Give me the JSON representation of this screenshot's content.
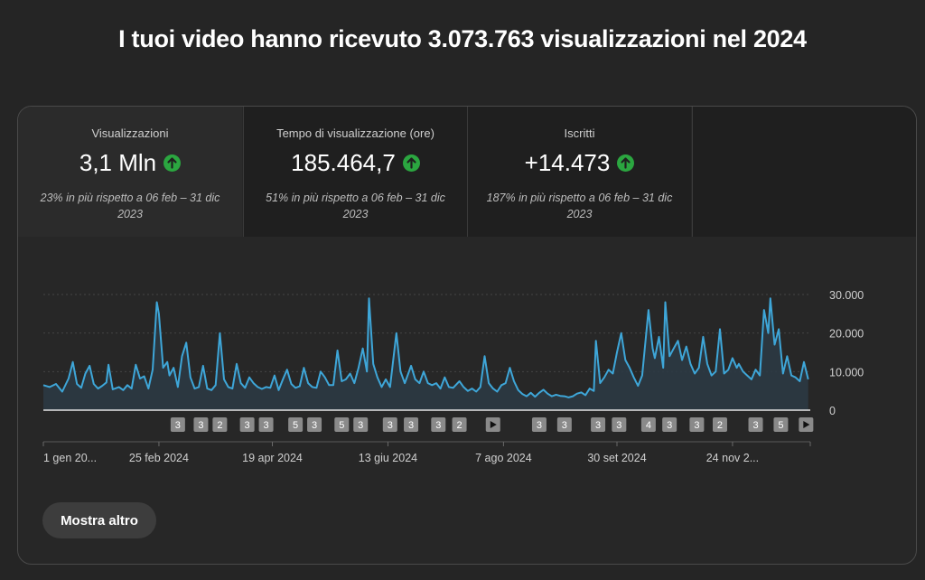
{
  "headline": "I tuoi video hanno ricevuto 3.073.763 visualizzazioni nel 2024",
  "metrics": [
    {
      "label": "Visualizzazioni",
      "value": "3,1 Mln",
      "note": "23% in più rispetto a 06 feb – 31 dic 2023"
    },
    {
      "label": "Tempo di visualizzazione (ore)",
      "value": "185.464,7",
      "note": "51% in più rispetto a 06 feb – 31 dic 2023"
    },
    {
      "label": "Iscritti",
      "value": "+14.473",
      "note": "187% in più rispetto a 06 feb – 31 dic 2023"
    }
  ],
  "colors": {
    "line": "#3ea6d8",
    "area": "#2c3a44",
    "up": "#2ba640",
    "marker": "#8a8a8a"
  },
  "more_button": "Mostra altro",
  "chart_data": {
    "type": "area",
    "title": "",
    "xlabel": "",
    "ylabel": "",
    "ylim": [
      0,
      30000
    ],
    "yticks": [
      {
        "value": 30000,
        "label": "30.000"
      },
      {
        "value": 20000,
        "label": "20.000"
      },
      {
        "value": 10000,
        "label": "10.000"
      },
      {
        "value": 0,
        "label": "0"
      }
    ],
    "xrange_days": [
      0,
      365
    ],
    "xticks": [
      {
        "day": 0,
        "label": "1 gen 20..."
      },
      {
        "day": 55,
        "label": "25 feb 2024"
      },
      {
        "day": 109,
        "label": "19 apr 2024"
      },
      {
        "day": 164,
        "label": "13 giu 2024"
      },
      {
        "day": 219,
        "label": "7 ago 2024"
      },
      {
        "day": 273,
        "label": "30 set 2024"
      },
      {
        "day": 328,
        "label": "24 nov 2..."
      }
    ],
    "series": [
      {
        "name": "",
        "points": [
          [
            0,
            6500
          ],
          [
            3,
            6000
          ],
          [
            6,
            6800
          ],
          [
            9,
            4800
          ],
          [
            12,
            8200
          ],
          [
            14,
            12500
          ],
          [
            16,
            6800
          ],
          [
            18,
            5800
          ],
          [
            20,
            9500
          ],
          [
            22,
            11500
          ],
          [
            24,
            6800
          ],
          [
            26,
            5600
          ],
          [
            28,
            6300
          ],
          [
            30,
            7200
          ],
          [
            31,
            11800
          ],
          [
            33,
            5400
          ],
          [
            36,
            6000
          ],
          [
            38,
            5200
          ],
          [
            40,
            6500
          ],
          [
            42,
            5600
          ],
          [
            44,
            11800
          ],
          [
            46,
            8200
          ],
          [
            48,
            8800
          ],
          [
            50,
            5600
          ],
          [
            52,
            10500
          ],
          [
            54,
            28000
          ],
          [
            55,
            25000
          ],
          [
            57,
            11000
          ],
          [
            59,
            12500
          ],
          [
            60,
            9000
          ],
          [
            62,
            11000
          ],
          [
            64,
            6000
          ],
          [
            66,
            14000
          ],
          [
            68,
            17500
          ],
          [
            70,
            8500
          ],
          [
            72,
            5600
          ],
          [
            74,
            6000
          ],
          [
            76,
            11500
          ],
          [
            78,
            5600
          ],
          [
            80,
            5200
          ],
          [
            82,
            6500
          ],
          [
            84,
            20000
          ],
          [
            86,
            8000
          ],
          [
            88,
            6000
          ],
          [
            90,
            5600
          ],
          [
            92,
            12000
          ],
          [
            94,
            7000
          ],
          [
            96,
            5800
          ],
          [
            98,
            8500
          ],
          [
            100,
            7000
          ],
          [
            102,
            6000
          ],
          [
            104,
            5500
          ],
          [
            106,
            6000
          ],
          [
            108,
            5800
          ],
          [
            110,
            9000
          ],
          [
            112,
            5200
          ],
          [
            114,
            8000
          ],
          [
            116,
            10500
          ],
          [
            118,
            6800
          ],
          [
            120,
            5800
          ],
          [
            122,
            6200
          ],
          [
            124,
            11000
          ],
          [
            126,
            7000
          ],
          [
            128,
            6000
          ],
          [
            130,
            5800
          ],
          [
            132,
            10000
          ],
          [
            134,
            8500
          ],
          [
            136,
            6500
          ],
          [
            138,
            6500
          ],
          [
            140,
            15500
          ],
          [
            142,
            7500
          ],
          [
            144,
            8000
          ],
          [
            146,
            9500
          ],
          [
            148,
            7000
          ],
          [
            150,
            11000
          ],
          [
            152,
            16000
          ],
          [
            154,
            10000
          ],
          [
            155,
            29000
          ],
          [
            157,
            12000
          ],
          [
            159,
            8500
          ],
          [
            161,
            6000
          ],
          [
            163,
            8000
          ],
          [
            165,
            6000
          ],
          [
            168,
            20000
          ],
          [
            170,
            10000
          ],
          [
            172,
            7000
          ],
          [
            175,
            11500
          ],
          [
            177,
            8000
          ],
          [
            179,
            7000
          ],
          [
            181,
            10000
          ],
          [
            183,
            7000
          ],
          [
            185,
            6500
          ],
          [
            187,
            7000
          ],
          [
            189,
            5600
          ],
          [
            191,
            8500
          ],
          [
            193,
            6000
          ],
          [
            195,
            5800
          ],
          [
            198,
            7500
          ],
          [
            200,
            6000
          ],
          [
            202,
            5000
          ],
          [
            204,
            5600
          ],
          [
            206,
            4800
          ],
          [
            208,
            6000
          ],
          [
            210,
            14000
          ],
          [
            212,
            7000
          ],
          [
            214,
            5600
          ],
          [
            216,
            4800
          ],
          [
            218,
            6500
          ],
          [
            220,
            7000
          ],
          [
            222,
            11000
          ],
          [
            224,
            7500
          ],
          [
            226,
            5200
          ],
          [
            228,
            4200
          ],
          [
            230,
            3600
          ],
          [
            232,
            4500
          ],
          [
            234,
            3500
          ],
          [
            236,
            4500
          ],
          [
            238,
            5300
          ],
          [
            240,
            4300
          ],
          [
            242,
            3600
          ],
          [
            244,
            4000
          ],
          [
            246,
            3700
          ],
          [
            248,
            3600
          ],
          [
            250,
            3300
          ],
          [
            252,
            3600
          ],
          [
            254,
            4300
          ],
          [
            256,
            4600
          ],
          [
            258,
            3900
          ],
          [
            260,
            5600
          ],
          [
            262,
            5000
          ],
          [
            263,
            18000
          ],
          [
            265,
            7000
          ],
          [
            267,
            8500
          ],
          [
            269,
            10500
          ],
          [
            271,
            9500
          ],
          [
            273,
            15000
          ],
          [
            275,
            20000
          ],
          [
            277,
            13000
          ],
          [
            279,
            11000
          ],
          [
            281,
            8500
          ],
          [
            283,
            6300
          ],
          [
            285,
            9000
          ],
          [
            288,
            26000
          ],
          [
            290,
            16000
          ],
          [
            291,
            13500
          ],
          [
            293,
            19000
          ],
          [
            295,
            11000
          ],
          [
            296,
            28000
          ],
          [
            298,
            14000
          ],
          [
            300,
            16000
          ],
          [
            302,
            18000
          ],
          [
            304,
            13000
          ],
          [
            306,
            16500
          ],
          [
            308,
            12000
          ],
          [
            310,
            9500
          ],
          [
            312,
            11000
          ],
          [
            314,
            19000
          ],
          [
            316,
            12000
          ],
          [
            318,
            9000
          ],
          [
            320,
            10000
          ],
          [
            322,
            21000
          ],
          [
            324,
            9500
          ],
          [
            326,
            10500
          ],
          [
            328,
            13500
          ],
          [
            330,
            11000
          ],
          [
            331,
            12000
          ],
          [
            333,
            10000
          ],
          [
            335,
            9000
          ],
          [
            337,
            8000
          ],
          [
            339,
            10500
          ],
          [
            341,
            9000
          ],
          [
            343,
            26000
          ],
          [
            345,
            20000
          ],
          [
            346,
            29000
          ],
          [
            348,
            17000
          ],
          [
            350,
            21000
          ],
          [
            352,
            9500
          ],
          [
            354,
            14000
          ],
          [
            356,
            9000
          ],
          [
            358,
            8500
          ],
          [
            360,
            7500
          ],
          [
            362,
            12500
          ],
          [
            364,
            8000
          ]
        ]
      }
    ],
    "markers": [
      {
        "day": 64,
        "label": "3"
      },
      {
        "day": 75,
        "label": "3"
      },
      {
        "day": 84,
        "label": "2"
      },
      {
        "day": 97,
        "label": "3"
      },
      {
        "day": 106,
        "label": "3"
      },
      {
        "day": 120,
        "label": "5"
      },
      {
        "day": 129,
        "label": "3"
      },
      {
        "day": 142,
        "label": "5"
      },
      {
        "day": 151,
        "label": "3"
      },
      {
        "day": 165,
        "label": "3"
      },
      {
        "day": 175,
        "label": "3"
      },
      {
        "day": 188,
        "label": "3"
      },
      {
        "day": 198,
        "label": "2"
      },
      {
        "day": 214,
        "label": "▶"
      },
      {
        "day": 236,
        "label": "3"
      },
      {
        "day": 248,
        "label": "3"
      },
      {
        "day": 264,
        "label": "3"
      },
      {
        "day": 274,
        "label": "3"
      },
      {
        "day": 288,
        "label": "4"
      },
      {
        "day": 298,
        "label": "3"
      },
      {
        "day": 311,
        "label": "3"
      },
      {
        "day": 322,
        "label": "2"
      },
      {
        "day": 339,
        "label": "3"
      },
      {
        "day": 351,
        "label": "5"
      },
      {
        "day": 363,
        "label": "▶"
      }
    ],
    "grid": "horizontal dashed",
    "legend": "none"
  }
}
